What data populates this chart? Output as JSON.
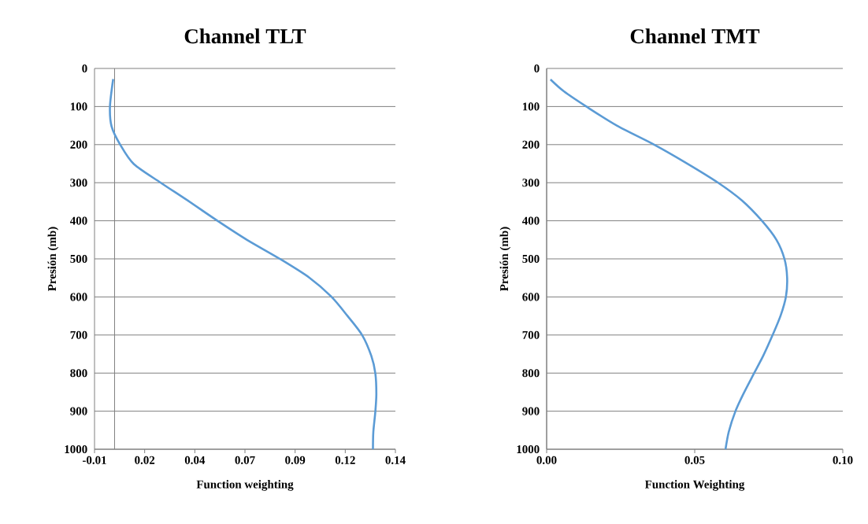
{
  "chart_data": [
    {
      "type": "line",
      "title": "Channel TLT",
      "xlabel": "Function weighting",
      "ylabel": "Presión (mb)",
      "xlim": [
        -0.01,
        0.14
      ],
      "xticks": [
        -0.01,
        {
          "value": 0.015,
          "label": "0.02"
        },
        0.04,
        {
          "value": 0.065,
          "label": "0.07"
        },
        0.09,
        {
          "value": 0.115,
          "label": "0.12"
        },
        0.14
      ],
      "ylim": [
        1000,
        0
      ],
      "yticks": [
        0,
        100,
        200,
        300,
        400,
        500,
        600,
        700,
        800,
        900,
        1000
      ],
      "grid": "y",
      "series": [
        {
          "color": "#5b9bd5",
          "x": [
            -0.0007,
            -0.0023,
            -0.0015,
            0.0028,
            0.0096,
            0.023,
            0.0365,
            0.0513,
            0.066,
            0.0824,
            0.097,
            0.108,
            0.116,
            0.1234,
            0.128,
            0.13,
            0.1305,
            0.13,
            0.129,
            0.1288
          ],
          "values": [
            28,
            100,
            152,
            200,
            251,
            300,
            347,
            400,
            450,
            500,
            549,
            599,
            649,
            700,
            755,
            801,
            855,
            901,
            954,
            1000
          ]
        }
      ]
    },
    {
      "type": "line",
      "title": "Channel TMT",
      "xlabel": "Function Weighting",
      "ylabel": "Presión (mb)",
      "xlim": [
        0,
        0.1
      ],
      "xticks": [
        {
          "value": 0,
          "label": "0.00"
        },
        0.05,
        {
          "value": 0.1,
          "label": "0.10"
        }
      ],
      "ylim": [
        1000,
        0
      ],
      "yticks": [
        0,
        100,
        200,
        300,
        400,
        500,
        600,
        700,
        800,
        900,
        1000
      ],
      "grid": "y",
      "series": [
        {
          "color": "#5b9bd5",
          "x": [
            0.0013,
            0.0058,
            0.0134,
            0.0237,
            0.0363,
            0.0471,
            0.0579,
            0.066,
            0.0727,
            0.0776,
            0.0803,
            0.0812,
            0.0808,
            0.079,
            0.0763,
            0.0731,
            0.07,
            0.0664,
            0.0637,
            0.0615,
            0.0604
          ],
          "values": [
            29,
            60,
            100,
            150,
            200,
            248,
            300,
            347,
            400,
            450,
            500,
            549,
            599,
            649,
            700,
            755,
            801,
            855,
            901,
            954,
            1000
          ]
        }
      ]
    }
  ]
}
